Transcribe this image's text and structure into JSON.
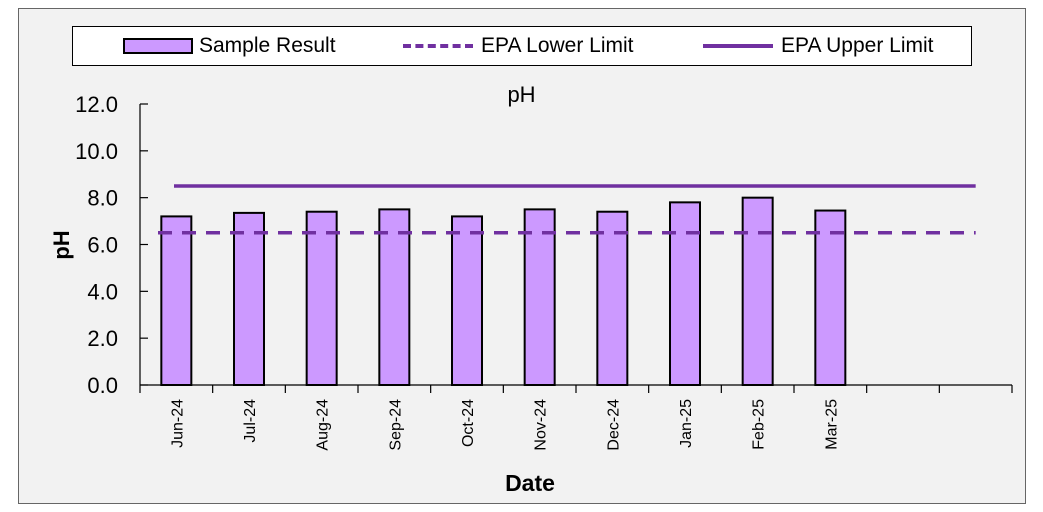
{
  "chart_data": {
    "type": "bar",
    "title": "pH",
    "xlabel": "Date",
    "ylabel": "pH",
    "ylim": [
      0,
      12
    ],
    "yticks": [
      "0.0",
      "2.0",
      "4.0",
      "6.0",
      "8.0",
      "10.0",
      "12.0"
    ],
    "categories": [
      "Jun-24",
      "Jul-24",
      "Aug-24",
      "Sep-24",
      "Oct-24",
      "Nov-24",
      "Dec-24",
      "Jan-25",
      "Feb-25",
      "Mar-25",
      "",
      ""
    ],
    "series": [
      {
        "name": "Sample Result",
        "type": "bar",
        "values": [
          7.2,
          7.35,
          7.4,
          7.5,
          7.2,
          7.5,
          7.4,
          7.8,
          8.0,
          7.45,
          null,
          null
        ]
      },
      {
        "name": "EPA Lower Limit",
        "type": "line",
        "style": "dashed",
        "value": 6.5
      },
      {
        "name": "EPA Upper Limit",
        "type": "line",
        "style": "solid",
        "value": 8.5
      }
    ],
    "legend_position": "top",
    "grid": false,
    "colors": {
      "bar_fill": "#cc99ff",
      "bar_stroke": "#000000",
      "limit_line": "#7030a0",
      "background": "#f2f2f2"
    }
  }
}
